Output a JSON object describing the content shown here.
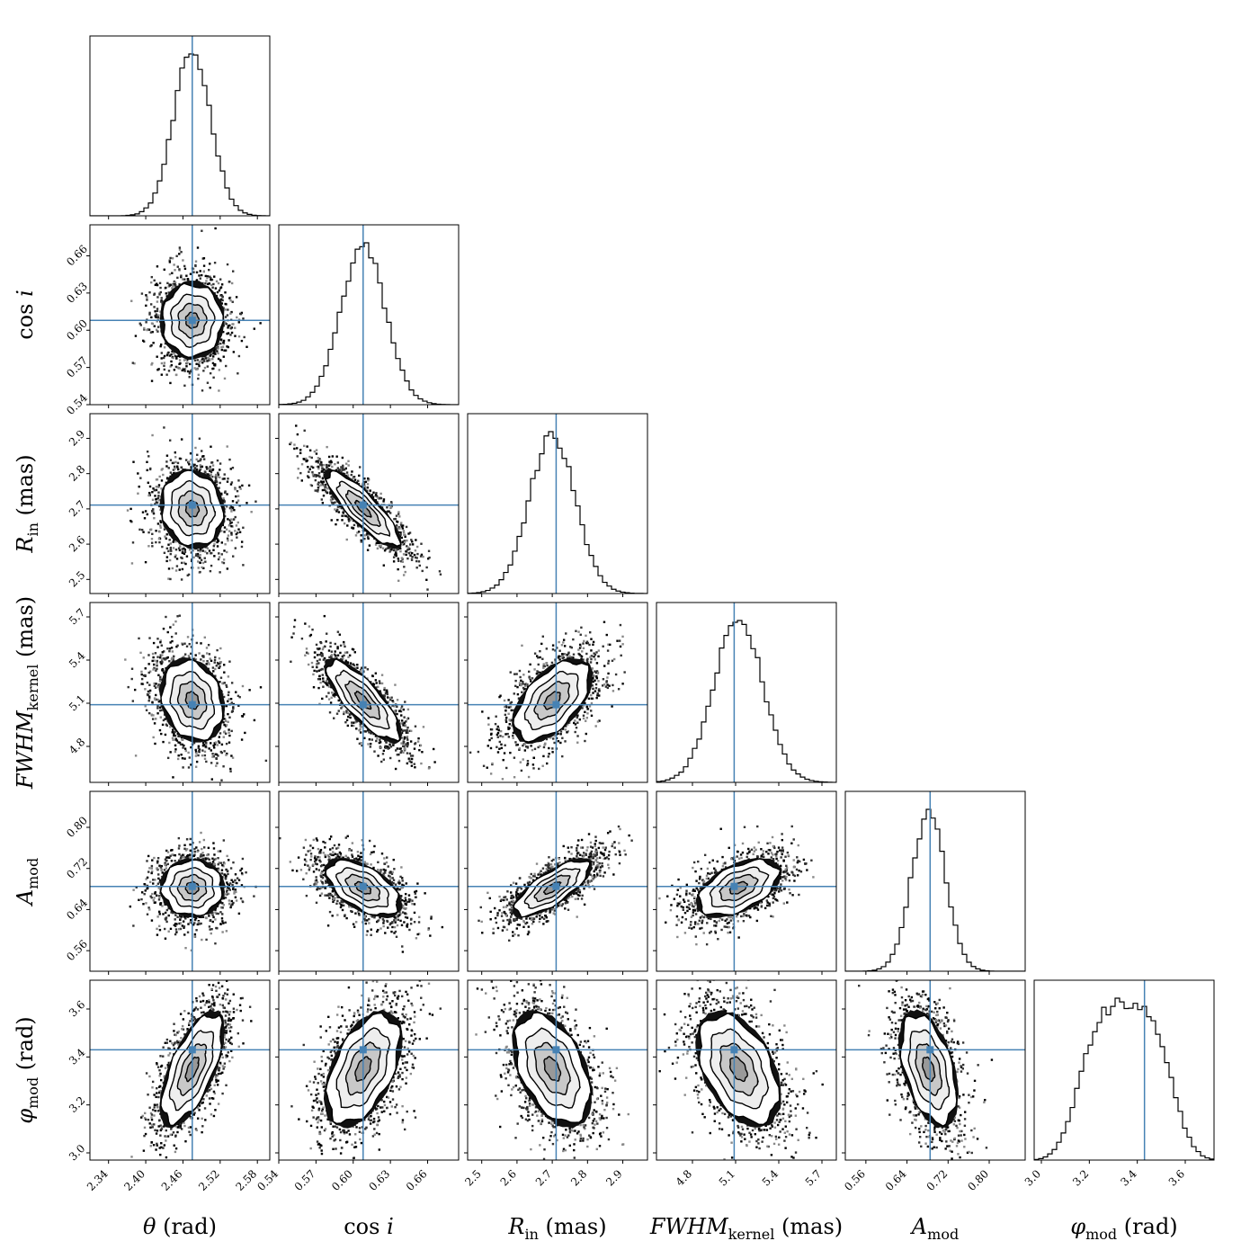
{
  "chart_data": {
    "type": "corner",
    "parameters": [
      {
        "key": "theta",
        "label": "θ",
        "italic": true,
        "subscript": "",
        "unit": "(rad)",
        "range": [
          2.31,
          2.6
        ],
        "ticks": [
          2.34,
          2.4,
          2.46,
          2.52,
          2.58
        ],
        "truth": 2.475,
        "hist_mean": 2.475,
        "hist_sigma": 0.03
      },
      {
        "key": "cosi",
        "label": "cos i",
        "italic": false,
        "subscript": "",
        "unit": "",
        "range": [
          0.54,
          0.685
        ],
        "ticks": [
          0.54,
          0.57,
          0.6,
          0.63,
          0.66
        ],
        "truth": 0.608,
        "hist_mean": 0.608,
        "hist_sigma": 0.018
      },
      {
        "key": "rin",
        "label": "R",
        "italic": true,
        "subscript": "in",
        "unit": "(mas)",
        "range": [
          2.46,
          2.97
        ],
        "ticks": [
          2.5,
          2.6,
          2.7,
          2.8,
          2.9
        ],
        "truth": 2.711,
        "hist_mean": 2.7,
        "hist_sigma": 0.065
      },
      {
        "key": "fwhm",
        "label": "FWHM",
        "italic": true,
        "subscript": "kernel",
        "unit": "(mas)",
        "range": [
          4.55,
          5.8
        ],
        "ticks": [
          4.8,
          5.1,
          5.4,
          5.7
        ],
        "truth": 5.09,
        "hist_mean": 5.12,
        "hist_sigma": 0.17
      },
      {
        "key": "amod",
        "label": "A",
        "italic": true,
        "subscript": "mod",
        "unit": "",
        "range": [
          0.52,
          0.87
        ],
        "ticks": [
          0.56,
          0.64,
          0.72,
          0.8
        ],
        "truth": 0.685,
        "hist_mean": 0.682,
        "hist_sigma": 0.033
      },
      {
        "key": "phimod",
        "label": "φ",
        "italic": true,
        "subscript": "mod",
        "unit": "(rad)",
        "range": [
          2.97,
          3.72
        ],
        "ticks": [
          3.0,
          3.2,
          3.4,
          3.6
        ],
        "truth": 3.43,
        "hist_mean": 3.35,
        "hist_sigma": 0.14
      }
    ],
    "correlations": [
      [
        1,
        0,
        0,
        0,
        0,
        0
      ],
      [
        0,
        1,
        0,
        0,
        0,
        0
      ],
      [
        -0.1,
        -0.85,
        1,
        0,
        0,
        0
      ],
      [
        -0.2,
        -0.8,
        0.55,
        1,
        0,
        0
      ],
      [
        0,
        -0.55,
        0.75,
        0.5,
        1,
        0
      ],
      [
        0.65,
        0.5,
        -0.45,
        -0.45,
        -0.45,
        1
      ]
    ],
    "truth_color": "#4682b4",
    "contour_color": "#000000",
    "tick_label_format": [
      [
        "2.34",
        "2.40",
        "2.46",
        "2.52",
        "2.58"
      ],
      [
        "0.54",
        "0.57",
        "0.60",
        "0.63",
        "0.66"
      ],
      [
        "2.5",
        "2.6",
        "2.7",
        "2.8",
        "2.9"
      ],
      [
        "4.8",
        "5.1",
        "5.4",
        "5.7"
      ],
      [
        "0.56",
        "0.64",
        "0.72",
        "0.80"
      ],
      [
        "3.0",
        "3.2",
        "3.4",
        "3.6"
      ]
    ]
  }
}
